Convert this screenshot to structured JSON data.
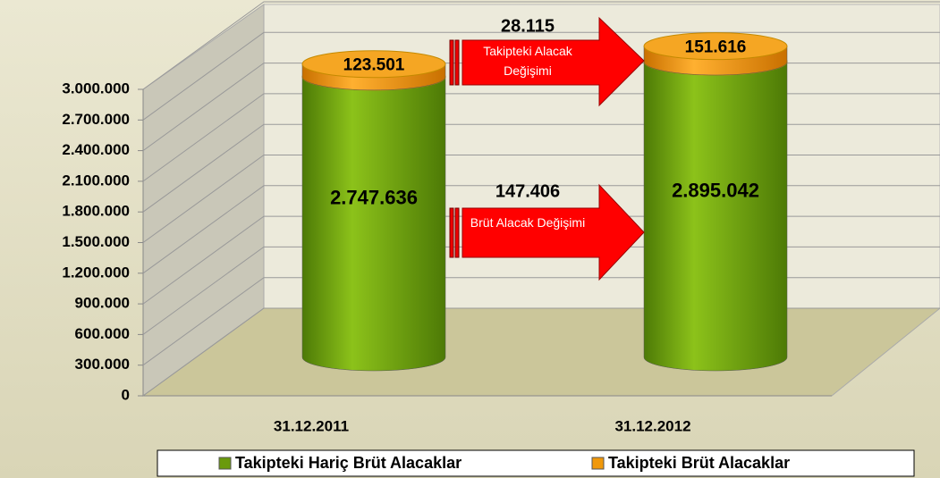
{
  "chart_data": {
    "type": "stacked-cylinder",
    "categories": [
      "31.12.2011",
      "31.12.2012"
    ],
    "series": [
      {
        "name": "Takipteki Hariç Brüt Alacaklar",
        "color": "#6a9a0c",
        "values": [
          2747636,
          2895042
        ],
        "value_labels": [
          "2.747.636",
          "2.895.042"
        ]
      },
      {
        "name": "Takipteki Brüt Alacaklar",
        "color": "#f0980a",
        "values": [
          123501,
          151616
        ],
        "value_labels": [
          "123.501",
          "151.616"
        ]
      }
    ],
    "ylim": [
      0,
      3000000
    ],
    "yticks": [
      0,
      {
        "value": 300000,
        "label": "300.000"
      },
      {
        "value": 600000,
        "label": "600.000"
      },
      {
        "value": 900000,
        "label": "900.000"
      },
      {
        "value": 1200000,
        "label": "1.200.000"
      },
      {
        "value": 1500000,
        "label": "1.500.000"
      },
      {
        "value": 1800000,
        "label": "1.800.000"
      },
      {
        "value": 2100000,
        "label": "2.100.000"
      },
      {
        "value": 2400000,
        "label": "2.400.000"
      },
      {
        "value": 2700000,
        "label": "2.700.000"
      },
      {
        "value": 3000000,
        "label": "3.000.000"
      }
    ],
    "grid": true,
    "annotations": [
      {
        "label": "28.115",
        "text": "Takipteki Alacak Değişimi"
      },
      {
        "label": "147.406",
        "text": "Brüt Alacak Değişimi"
      }
    ]
  }
}
